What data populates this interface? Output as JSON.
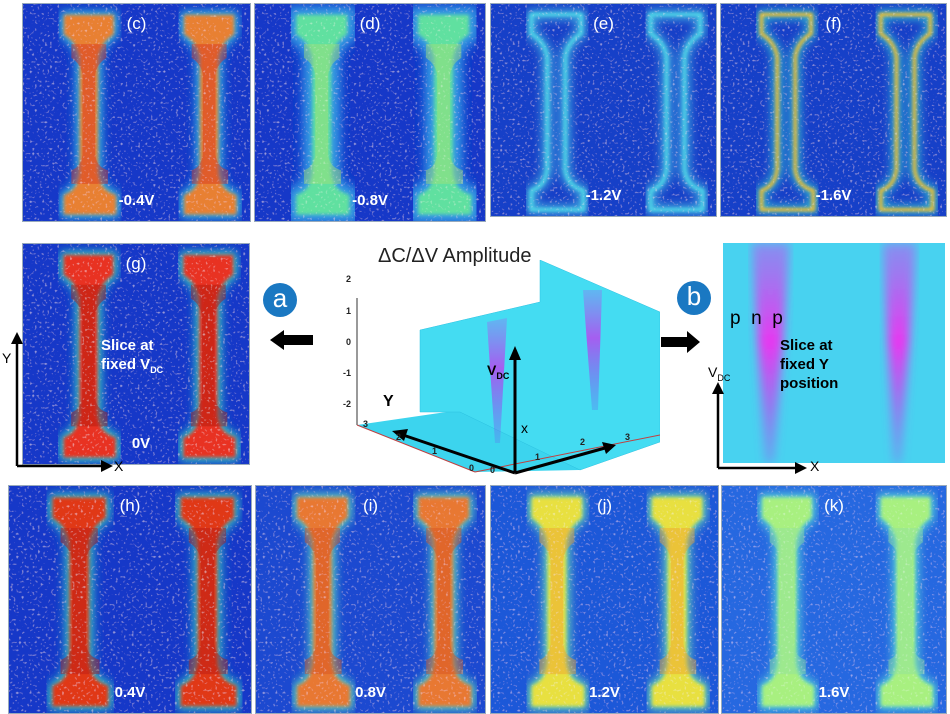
{
  "panels_top": [
    {
      "label": "(c)",
      "voltage": "-0.4V"
    },
    {
      "label": "(d)",
      "voltage": "-0.8V"
    },
    {
      "label": "(e)",
      "voltage": "-1.2V"
    },
    {
      "label": "(f)",
      "voltage": "-1.6V"
    }
  ],
  "panel_g": {
    "label": "(g)",
    "voltage": "0V",
    "slice_line1": "Slice at",
    "slice_line2": "fixed V",
    "slice_sub": "DC",
    "axis_y": "Y",
    "axis_x": "X"
  },
  "panels_bottom": [
    {
      "label": "(h)",
      "voltage": "0.4V"
    },
    {
      "label": "(i)",
      "voltage": "0.8V"
    },
    {
      "label": "(j)",
      "voltage": "1.2V"
    },
    {
      "label": "(k)",
      "voltage": "1.6V"
    }
  ],
  "badge_a": "a",
  "badge_b": "b",
  "center_plot": {
    "title": "ΔC/ΔV Amplitude",
    "z_ticks": [
      "2",
      "1",
      "0",
      "-1",
      "-2"
    ],
    "y_ticks": [
      "3",
      "2",
      "1",
      "0"
    ],
    "x_ticks": [
      "0",
      "1",
      "2",
      "3"
    ],
    "axis_vdc": "V",
    "axis_vdc_sub": "DC",
    "axis_y": "Y",
    "axis_x": "x"
  },
  "panel_b": {
    "regions": [
      "p",
      "n",
      "p"
    ],
    "slice_line1": "Slice at",
    "slice_line2": "fixed Y",
    "slice_line3": "position",
    "axis_v": "V",
    "axis_v_sub": "DC",
    "axis_x": "X"
  },
  "colors": {
    "background_blue": "#1238c8",
    "badge": "#1a78c2",
    "plot_cyan": "#3fd8f0",
    "magenta": "#e040f0"
  }
}
